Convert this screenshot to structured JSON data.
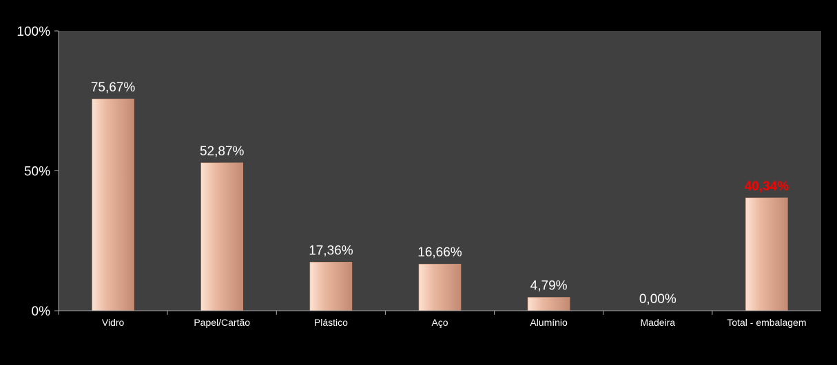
{
  "chart_data": {
    "type": "bar",
    "categories": [
      "Vidro",
      "Papel/Cartão",
      "Plástico",
      "Aço",
      "Alumínio",
      "Madeira",
      "Total - embalagem"
    ],
    "values": [
      75.67,
      52.87,
      17.36,
      16.66,
      4.79,
      0.0,
      40.34
    ],
    "data_labels": [
      "75,67%",
      "52,87%",
      "17,36%",
      "16,66%",
      "4,79%",
      "0,00%",
      "40,34%"
    ],
    "highlight_index": 6,
    "ylim": [
      0,
      100
    ],
    "y_ticks": [
      {
        "value": 0,
        "label": "0%"
      },
      {
        "value": 50,
        "label": "50%"
      },
      {
        "value": 100,
        "label": "100%"
      }
    ],
    "grid": false,
    "legend": "none",
    "colors": {
      "page_background": "#000000",
      "plot_background": "#404040",
      "bar_light": "#fde2d2",
      "bar_mid": "#eab8a0",
      "bar_dark": "#c48a72",
      "axis": "#aaaaaa",
      "text": "#ffffff",
      "highlight_label": "#ff0000"
    }
  }
}
